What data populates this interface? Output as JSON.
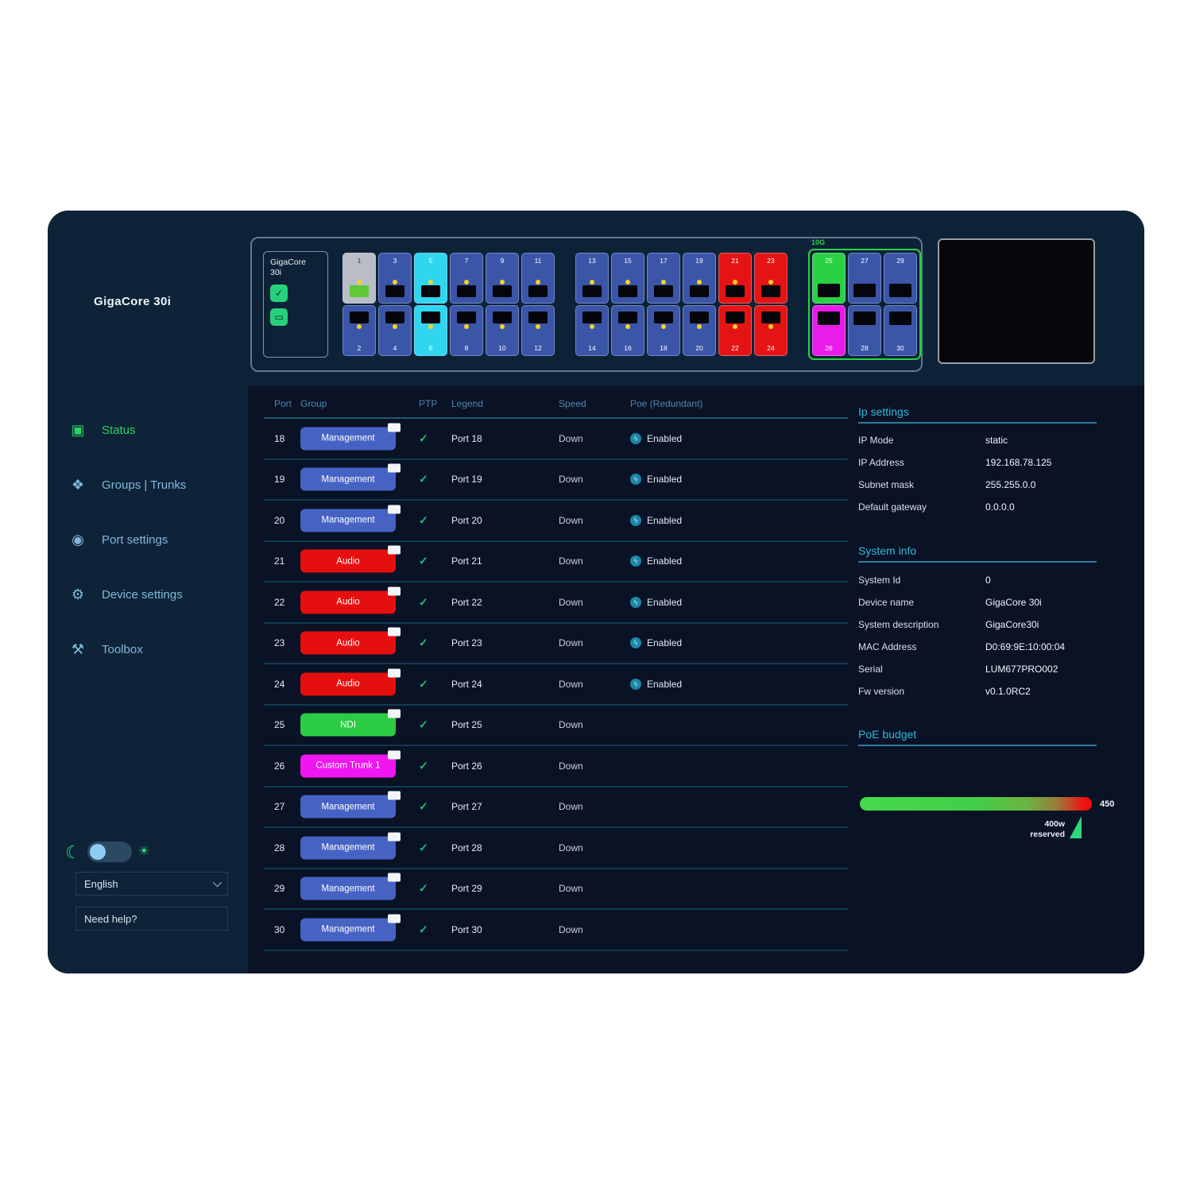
{
  "brand": {
    "title": "GigaCore 30i"
  },
  "device": {
    "box_line1": "GigaCore",
    "box_line2": "30i",
    "buttons": [
      {
        "icon": "check-icon",
        "glyph": "✓"
      },
      {
        "icon": "identify-icon",
        "glyph": "▭"
      }
    ],
    "default_port_color": "#3b55a8",
    "groups": [
      {
        "sfp": false,
        "label": "",
        "columns": [
          {
            "top": {
              "n": "1",
              "color": "#b9bdc6",
              "jack": "#5fc938",
              "dark_num": true
            },
            "bottom": {
              "n": "2"
            }
          },
          {
            "top": {
              "n": "3"
            },
            "bottom": {
              "n": "4"
            }
          },
          {
            "top": {
              "n": "5",
              "color": "#30d6ef"
            },
            "bottom": {
              "n": "6",
              "color": "#30d6ef"
            }
          },
          {
            "top": {
              "n": "7"
            },
            "bottom": {
              "n": "8"
            }
          },
          {
            "top": {
              "n": "9"
            },
            "bottom": {
              "n": "10"
            }
          },
          {
            "top": {
              "n": "11"
            },
            "bottom": {
              "n": "12"
            }
          }
        ]
      },
      {
        "sfp": false,
        "label": "",
        "columns": [
          {
            "top": {
              "n": "13"
            },
            "bottom": {
              "n": "14"
            }
          },
          {
            "top": {
              "n": "15"
            },
            "bottom": {
              "n": "16"
            }
          },
          {
            "top": {
              "n": "17"
            },
            "bottom": {
              "n": "18"
            }
          },
          {
            "top": {
              "n": "19"
            },
            "bottom": {
              "n": "20"
            }
          },
          {
            "top": {
              "n": "21",
              "color": "#e51414"
            },
            "bottom": {
              "n": "22",
              "color": "#e51414"
            }
          },
          {
            "top": {
              "n": "23",
              "color": "#e51414"
            },
            "bottom": {
              "n": "24",
              "color": "#e51414"
            }
          }
        ]
      },
      {
        "sfp": true,
        "label": "10G",
        "selected": true,
        "columns": [
          {
            "top": {
              "n": "25",
              "color": "#2bd145"
            },
            "bottom": {
              "n": "26",
              "color": "#ea1cea"
            }
          },
          {
            "top": {
              "n": "27"
            },
            "bottom": {
              "n": "28"
            }
          },
          {
            "top": {
              "n": "29"
            },
            "bottom": {
              "n": "30"
            }
          }
        ]
      }
    ]
  },
  "sidebar": {
    "items": [
      {
        "label": "Status",
        "icon": "status-icon",
        "glyph": "▣",
        "active": true
      },
      {
        "label": "Groups | Trunks",
        "icon": "groups-trunks-icon",
        "glyph": "❖",
        "active": false
      },
      {
        "label": "Port settings",
        "icon": "port-settings-icon",
        "glyph": "◉",
        "active": false
      },
      {
        "label": "Device settings",
        "icon": "device-settings-icon",
        "glyph": "⚙",
        "active": false
      },
      {
        "label": "Toolbox",
        "icon": "toolbox-icon",
        "glyph": "⚒",
        "active": false
      }
    ],
    "footer": {
      "language": "English",
      "help": "Need help?"
    }
  },
  "table": {
    "headers": [
      "Port",
      "Group",
      "PTP",
      "Legend",
      "Speed",
      "Poe (Redundant)"
    ],
    "group_colors": {
      "Management": "#4663c4",
      "Audio": "#e60f0f",
      "NDI": "#2ccc44",
      "Custom Trunk 1": "#ef16ef"
    },
    "rows": [
      {
        "port": "18",
        "group": "Management",
        "ptp": "✓",
        "legend": "Port 18",
        "speed": "Down",
        "poe": "Enabled"
      },
      {
        "port": "19",
        "group": "Management",
        "ptp": "✓",
        "legend": "Port 19",
        "speed": "Down",
        "poe": "Enabled"
      },
      {
        "port": "20",
        "group": "Management",
        "ptp": "✓",
        "legend": "Port 20",
        "speed": "Down",
        "poe": "Enabled"
      },
      {
        "port": "21",
        "group": "Audio",
        "ptp": "✓",
        "legend": "Port 21",
        "speed": "Down",
        "poe": "Enabled"
      },
      {
        "port": "22",
        "group": "Audio",
        "ptp": "✓",
        "legend": "Port 22",
        "speed": "Down",
        "poe": "Enabled"
      },
      {
        "port": "23",
        "group": "Audio",
        "ptp": "✓",
        "legend": "Port 23",
        "speed": "Down",
        "poe": "Enabled"
      },
      {
        "port": "24",
        "group": "Audio",
        "ptp": "✓",
        "legend": "Port 24",
        "speed": "Down",
        "poe": "Enabled"
      },
      {
        "port": "25",
        "group": "NDI",
        "ptp": "✓",
        "legend": "Port 25",
        "speed": "Down",
        "poe": ""
      },
      {
        "port": "26",
        "group": "Custom Trunk 1",
        "ptp": "✓",
        "legend": "Port 26",
        "speed": "Down",
        "poe": ""
      },
      {
        "port": "27",
        "group": "Management",
        "ptp": "✓",
        "legend": "Port 27",
        "speed": "Down",
        "poe": ""
      },
      {
        "port": "28",
        "group": "Management",
        "ptp": "✓",
        "legend": "Port 28",
        "speed": "Down",
        "poe": ""
      },
      {
        "port": "29",
        "group": "Management",
        "ptp": "✓",
        "legend": "Port 29",
        "speed": "Down",
        "poe": ""
      },
      {
        "port": "30",
        "group": "Management",
        "ptp": "✓",
        "legend": "Port 30",
        "speed": "Down",
        "poe": ""
      }
    ],
    "poe_icon_glyph": "ϟ"
  },
  "panels": {
    "ip": {
      "title": "Ip settings",
      "rows": [
        {
          "label": "IP Mode",
          "value": "static"
        },
        {
          "label": "IP Address",
          "value": "192.168.78.125"
        },
        {
          "label": "Subnet mask",
          "value": "255.255.0.0"
        },
        {
          "label": "Default gateway",
          "value": "0.0.0.0"
        }
      ]
    },
    "system": {
      "title": "System info",
      "rows": [
        {
          "label": "System Id",
          "value": "0"
        },
        {
          "label": "Device name",
          "value": "GigaCore 30i"
        },
        {
          "label": "System description",
          "value": "GigaCore30i"
        },
        {
          "label": "MAC Address",
          "value": "D0:69:9E:10:00:04"
        },
        {
          "label": "Serial",
          "value": "LUM677PRO002"
        },
        {
          "label": "Fw version",
          "value": "v0.1.0RC2"
        }
      ]
    },
    "poe": {
      "title": "PoE budget",
      "max": "450",
      "reserved_line1": "400w",
      "reserved_line2": "reserved"
    }
  },
  "colors": {
    "accent_green": "#2ed066",
    "accent_cyan": "#2fb9dc",
    "sidebar_bg": "#0e2337",
    "main_bg": "#0a1226"
  }
}
